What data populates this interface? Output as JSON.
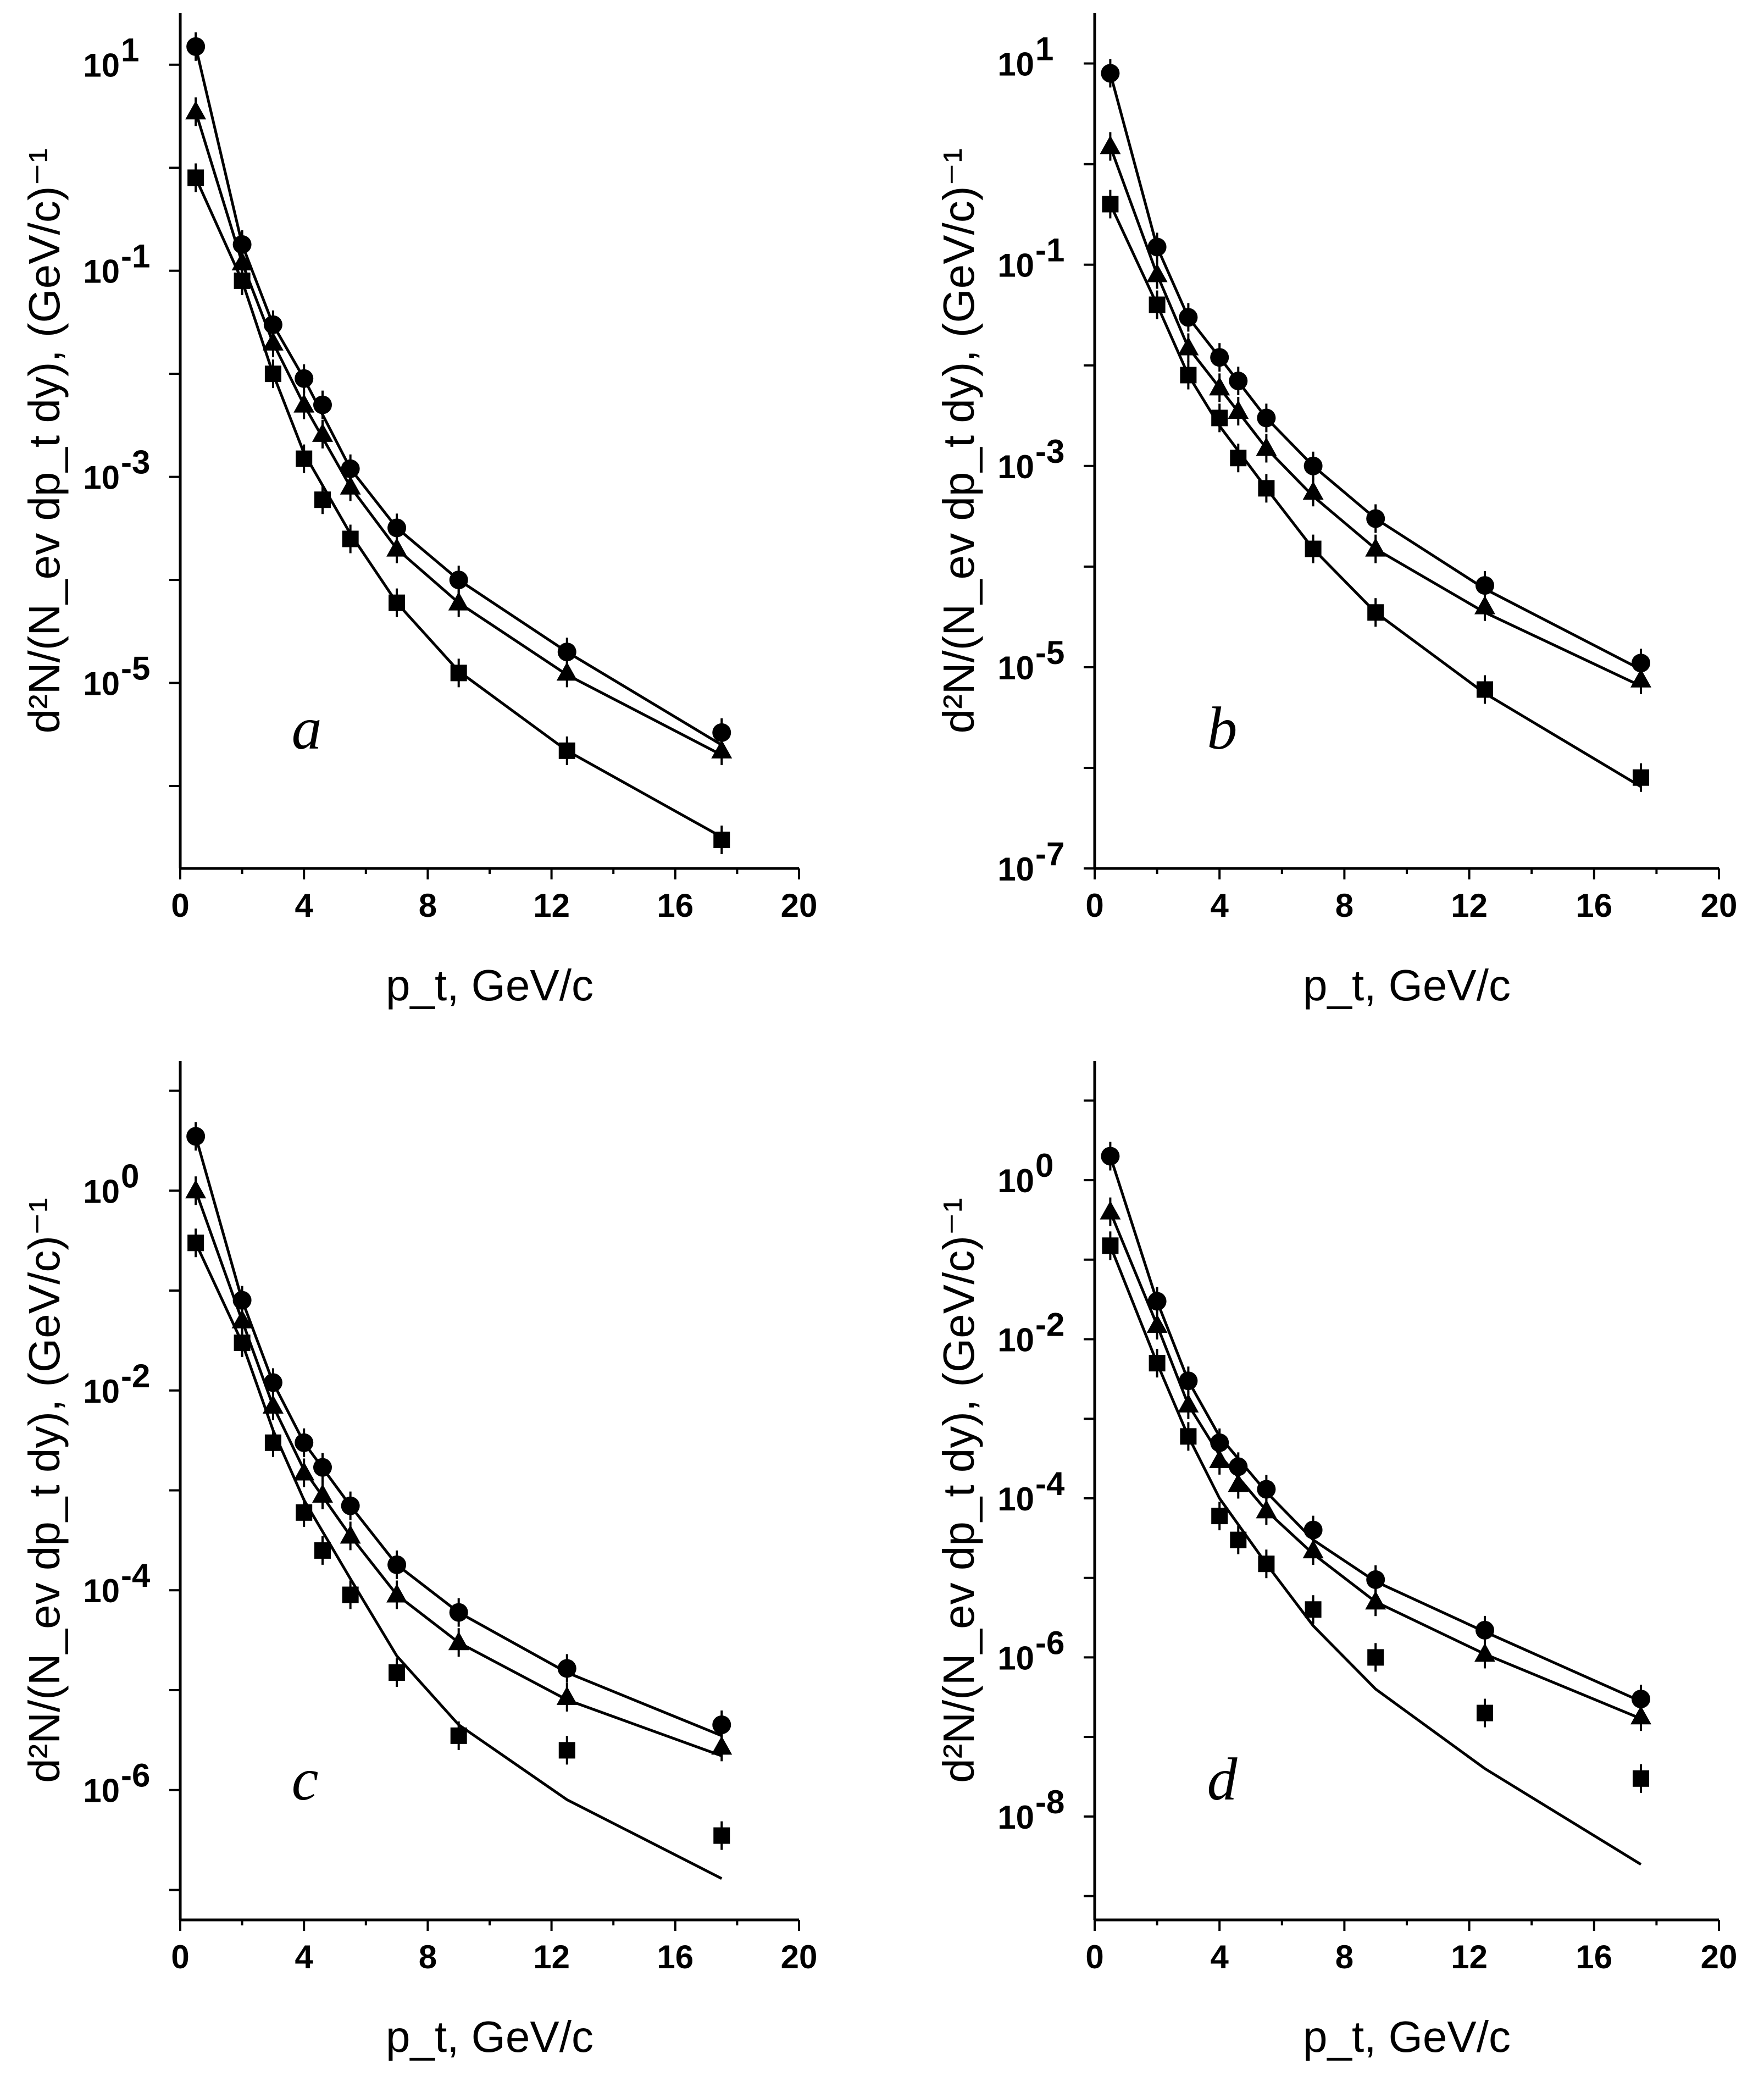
{
  "figure": {
    "x_axis_title": "p_t, GeV/c",
    "y_axis_title": "d²N/(N_ev dp_t dy), (GeV/c)⁻¹"
  },
  "chart_data": [
    {
      "type": "scatter",
      "panel_label": "a",
      "xlabel": "p_t, GeV/c",
      "ylabel": "d²N/(N_ev dp_t dy), (GeV/c)⁻¹",
      "xlim": [
        0,
        20
      ],
      "ylim_log10": [
        -6.8,
        1.5
      ],
      "x_ticks": [
        0,
        4,
        8,
        12,
        16,
        20
      ],
      "y_tick_exponents": [
        1,
        -1,
        -3,
        -5
      ],
      "y_tick_labels": [
        "10",
        "10",
        "10",
        "10"
      ],
      "y_tick_superscripts": [
        "1",
        "-1",
        "-3",
        "-5"
      ],
      "series": [
        {
          "name": "circles",
          "marker": "circle",
          "x": [
            0.5,
            2,
            3,
            4,
            4.6,
            5.5,
            7,
            9,
            12.5,
            17.5
          ],
          "y": [
            15,
            0.18,
            0.03,
            0.009,
            0.005,
            0.0012,
            0.00032,
            0.0001,
            2e-05,
            3.3e-06
          ],
          "fit": [
            [
              0.5,
              15
            ],
            [
              2,
              0.18
            ],
            [
              3,
              0.03
            ],
            [
              4,
              0.009
            ],
            [
              5.5,
              0.0012
            ],
            [
              7,
              0.00032
            ],
            [
              9,
              0.0001
            ],
            [
              12.5,
              2e-05
            ],
            [
              17.5,
              2.5e-06
            ]
          ]
        },
        {
          "name": "triangles",
          "marker": "triangle",
          "x": [
            0.5,
            2,
            3,
            4,
            4.6,
            5.5,
            7,
            9,
            12.5,
            17.5
          ],
          "y": [
            3.5,
            0.12,
            0.02,
            0.005,
            0.0026,
            0.0008,
            0.0002,
            6e-05,
            1.25e-05,
            2.2e-06
          ],
          "fit": [
            [
              0.5,
              3.5
            ],
            [
              2,
              0.12
            ],
            [
              3,
              0.02
            ],
            [
              4,
              0.005
            ],
            [
              5.5,
              0.0008
            ],
            [
              7,
              0.0002
            ],
            [
              9,
              6e-05
            ],
            [
              12.5,
              1.2e-05
            ],
            [
              17.5,
              2e-06
            ]
          ]
        },
        {
          "name": "squares",
          "marker": "square",
          "x": [
            0.5,
            2,
            3,
            4,
            4.6,
            5.5,
            7,
            9,
            12.5,
            17.5
          ],
          "y": [
            0.8,
            0.08,
            0.01,
            0.0015,
            0.0006,
            0.00025,
            6e-05,
            1.25e-05,
            2.2e-06,
            3e-07
          ],
          "fit": [
            [
              0.5,
              0.8
            ],
            [
              2,
              0.08
            ],
            [
              3,
              0.01
            ],
            [
              4,
              0.0017
            ],
            [
              5.5,
              0.00028
            ],
            [
              7,
              6e-05
            ],
            [
              9,
              1.3e-05
            ],
            [
              12.5,
              2.2e-06
            ],
            [
              17.5,
              3.2e-07
            ]
          ]
        }
      ]
    },
    {
      "type": "scatter",
      "panel_label": "b",
      "xlabel": "p_t, GeV/c",
      "ylabel": "d²N/(N_ev dp_t dy), (GeV/c)⁻¹",
      "xlim": [
        0,
        20
      ],
      "ylim_log10": [
        -7,
        1.5
      ],
      "x_ticks": [
        0,
        4,
        8,
        12,
        16,
        20
      ],
      "y_tick_exponents": [
        1,
        -1,
        -3,
        -5,
        -7
      ],
      "y_tick_labels": [
        "10",
        "10",
        "10",
        "10",
        "10"
      ],
      "y_tick_superscripts": [
        "1",
        "-1",
        "-3",
        "-5",
        "-7"
      ],
      "series": [
        {
          "name": "circles",
          "marker": "circle",
          "x": [
            0.5,
            2,
            3,
            4,
            4.6,
            5.5,
            7,
            9,
            12.5,
            17.5
          ],
          "y": [
            8,
            0.15,
            0.03,
            0.012,
            0.007,
            0.003,
            0.001,
            0.0003,
            6.5e-05,
            1.1e-05
          ],
          "fit": [
            [
              0.5,
              8
            ],
            [
              2,
              0.15
            ],
            [
              3,
              0.03
            ],
            [
              4,
              0.012
            ],
            [
              5.5,
              0.003
            ],
            [
              7,
              0.001
            ],
            [
              9,
              0.0003
            ],
            [
              12.5,
              6e-05
            ],
            [
              17.5,
              9.5e-06
            ]
          ]
        },
        {
          "name": "triangles",
          "marker": "triangle",
          "x": [
            0.5,
            2,
            3,
            4,
            4.6,
            5.5,
            7,
            9,
            12.5,
            17.5
          ],
          "y": [
            1.5,
            0.08,
            0.015,
            0.006,
            0.0035,
            0.0015,
            0.00055,
            0.00015,
            4e-05,
            7.5e-06
          ],
          "fit": [
            [
              0.5,
              1.5
            ],
            [
              2,
              0.08
            ],
            [
              3,
              0.015
            ],
            [
              4,
              0.006
            ],
            [
              5.5,
              0.0015
            ],
            [
              7,
              0.0005
            ],
            [
              9,
              0.00015
            ],
            [
              12.5,
              3.5e-05
            ],
            [
              17.5,
              6.5e-06
            ]
          ]
        },
        {
          "name": "squares",
          "marker": "square",
          "x": [
            0.5,
            2,
            3,
            4,
            4.6,
            5.5,
            7,
            9,
            12.5,
            17.5
          ],
          "y": [
            0.4,
            0.04,
            0.008,
            0.003,
            0.0012,
            0.0006,
            0.00015,
            3.5e-05,
            6e-06,
            8e-07
          ],
          "fit": [
            [
              0.5,
              0.4
            ],
            [
              2,
              0.04
            ],
            [
              3,
              0.008
            ],
            [
              4,
              0.0025
            ],
            [
              5.5,
              0.0006
            ],
            [
              7,
              0.00015
            ],
            [
              9,
              3.5e-05
            ],
            [
              12.5,
              5.5e-06
            ],
            [
              17.5,
              6.5e-07
            ]
          ]
        }
      ]
    },
    {
      "type": "scatter",
      "panel_label": "c",
      "xlabel": "p_t, GeV/c",
      "ylabel": "d²N/(N_ev dp_t dy), (GeV/c)⁻¹",
      "xlim": [
        0,
        20
      ],
      "ylim_log10": [
        -7.3,
        1.3
      ],
      "x_ticks": [
        0,
        4,
        8,
        12,
        16,
        20
      ],
      "y_tick_exponents": [
        0,
        -2,
        -4,
        -6
      ],
      "y_tick_labels": [
        "10",
        "10",
        "10",
        "10"
      ],
      "y_tick_superscripts": [
        "0",
        "-2",
        "-4",
        "-6"
      ],
      "series": [
        {
          "name": "circles",
          "marker": "circle",
          "x": [
            0.5,
            2,
            3,
            4,
            4.6,
            5.5,
            7,
            9,
            12.5,
            17.5
          ],
          "y": [
            3.5,
            0.08,
            0.012,
            0.003,
            0.0017,
            0.0007,
            0.00018,
            6e-05,
            1.65e-05,
            4.5e-06
          ],
          "fit": [
            [
              0.5,
              3.5
            ],
            [
              2,
              0.08
            ],
            [
              3,
              0.012
            ],
            [
              4,
              0.003
            ],
            [
              5.5,
              0.0007
            ],
            [
              7,
              0.00018
            ],
            [
              9,
              6e-05
            ],
            [
              12.5,
              1.5e-05
            ],
            [
              17.5,
              3.5e-06
            ]
          ]
        },
        {
          "name": "triangles",
          "marker": "triangle",
          "x": [
            0.5,
            2,
            3,
            4,
            4.6,
            5.5,
            7,
            9,
            12.5,
            17.5
          ],
          "y": [
            1.0,
            0.05,
            0.007,
            0.0015,
            0.0009,
            0.00035,
            9e-05,
            3e-05,
            8.5e-06,
            2.7e-06
          ],
          "fit": [
            [
              0.5,
              1.0
            ],
            [
              2,
              0.05
            ],
            [
              3,
              0.007
            ],
            [
              4,
              0.0016
            ],
            [
              5.5,
              0.00035
            ],
            [
              7,
              9e-05
            ],
            [
              9,
              3e-05
            ],
            [
              12.5,
              8e-06
            ],
            [
              17.5,
              2.2e-06
            ]
          ]
        },
        {
          "name": "squares",
          "marker": "square",
          "x": [
            0.5,
            2,
            3,
            4,
            4.6,
            5.5,
            7,
            9,
            12.5,
            17.5
          ],
          "y": [
            0.3,
            0.03,
            0.003,
            0.0006,
            0.00025,
            9e-05,
            1.5e-05,
            3.5e-06,
            2.5e-06,
            3.5e-07
          ],
          "fit": [
            [
              0.5,
              0.3
            ],
            [
              2,
              0.03
            ],
            [
              3,
              0.004
            ],
            [
              4,
              0.0008
            ],
            [
              5.5,
              0.00013
            ],
            [
              7,
              2.2e-05
            ],
            [
              9,
              4.5e-06
            ],
            [
              12.5,
              8e-07
            ],
            [
              17.5,
              1.3e-07
            ]
          ]
        }
      ]
    },
    {
      "type": "scatter",
      "panel_label": "d",
      "xlabel": "p_t, GeV/c",
      "ylabel": "d²N/(N_ev dp_t dy), (GeV/c)⁻¹",
      "xlim": [
        0,
        20
      ],
      "ylim_log10": [
        -9.3,
        1.5
      ],
      "x_ticks": [
        0,
        4,
        8,
        12,
        16,
        20
      ],
      "y_tick_exponents": [
        0,
        -2,
        -4,
        -6,
        -8
      ],
      "y_tick_labels": [
        "10",
        "10",
        "10",
        "10",
        "10"
      ],
      "y_tick_superscripts": [
        "0",
        "-2",
        "-4",
        "-6",
        "-8"
      ],
      "series": [
        {
          "name": "circles",
          "marker": "circle",
          "x": [
            0.5,
            2,
            3,
            4,
            4.6,
            5.5,
            7,
            9,
            12.5,
            17.5
          ],
          "y": [
            2,
            0.03,
            0.003,
            0.0005,
            0.00025,
            0.00013,
            4e-05,
            9.5e-06,
            2.2e-06,
            3e-07
          ],
          "fit": [
            [
              0.5,
              2
            ],
            [
              2,
              0.03
            ],
            [
              3,
              0.003
            ],
            [
              4,
              0.0006
            ],
            [
              5.5,
              0.00012
            ],
            [
              7,
              3e-05
            ],
            [
              9,
              9e-06
            ],
            [
              12.5,
              2.1e-06
            ],
            [
              17.5,
              2.8e-07
            ]
          ]
        },
        {
          "name": "triangles",
          "marker": "triangle",
          "x": [
            0.5,
            2,
            3,
            4,
            4.6,
            5.5,
            7,
            9,
            12.5,
            17.5
          ],
          "y": [
            0.4,
            0.015,
            0.0015,
            0.0003,
            0.00015,
            7e-05,
            2.2e-05,
            5e-06,
            1.1e-06,
            1.8e-07
          ],
          "fit": [
            [
              0.5,
              0.4
            ],
            [
              2,
              0.015
            ],
            [
              3,
              0.0015
            ],
            [
              4,
              0.00035
            ],
            [
              5.5,
              7e-05
            ],
            [
              7,
              2e-05
            ],
            [
              9,
              5e-06
            ],
            [
              12.5,
              1.1e-06
            ],
            [
              17.5,
              1.7e-07
            ]
          ]
        },
        {
          "name": "squares",
          "marker": "square",
          "x": [
            0.5,
            2,
            3,
            4,
            4.6,
            5.5,
            7,
            9,
            12.5,
            17.5
          ],
          "y": [
            0.15,
            0.005,
            0.0006,
            6e-05,
            3e-05,
            1.5e-05,
            4e-06,
            1e-06,
            2e-07,
            3e-08
          ],
          "fit": [
            [
              0.5,
              0.15
            ],
            [
              2,
              0.005
            ],
            [
              3,
              0.0006
            ],
            [
              4,
              0.0001
            ],
            [
              5.5,
              1.5e-05
            ],
            [
              7,
              2.5e-06
            ],
            [
              9,
              4e-07
            ],
            [
              12.5,
              4e-08
            ],
            [
              17.5,
              2.5e-09
            ]
          ]
        }
      ]
    }
  ]
}
